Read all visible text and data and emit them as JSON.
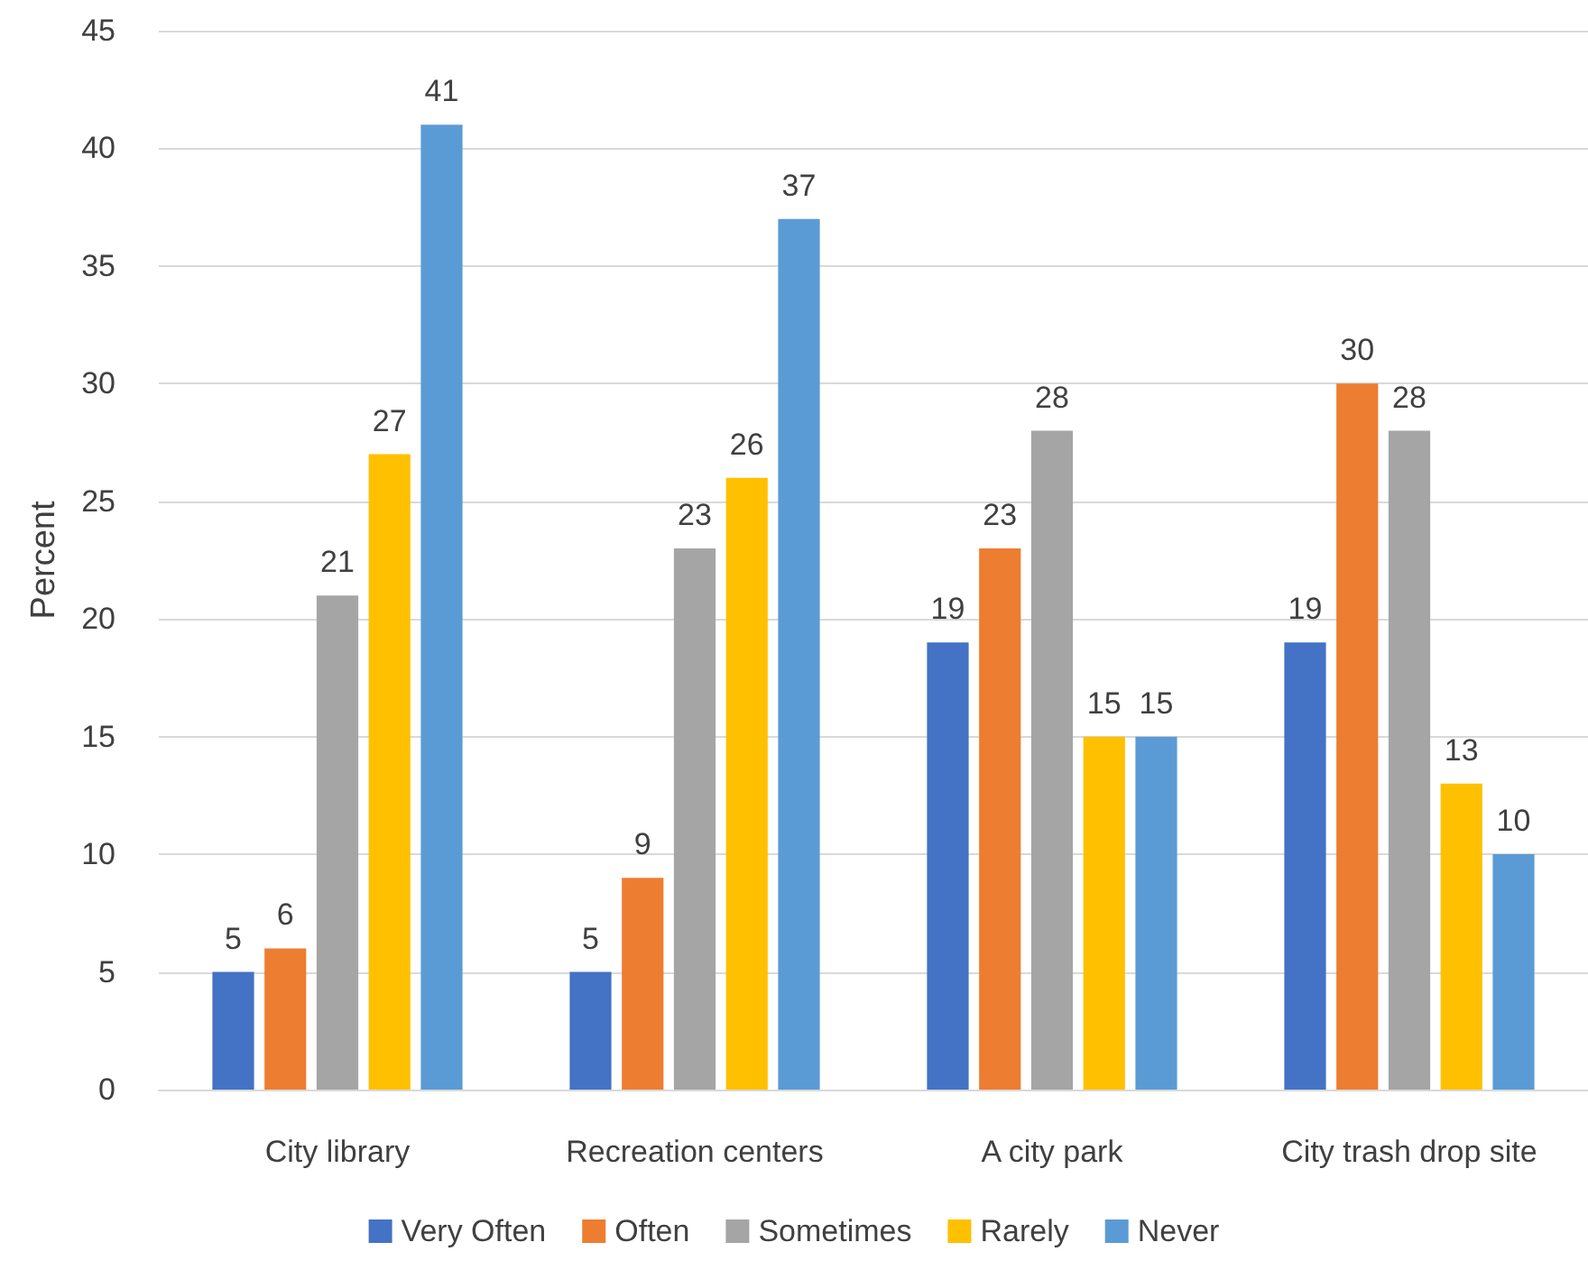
{
  "chart_data": {
    "type": "bar",
    "ylabel": "Percent",
    "categories": [
      "City library",
      "Recreation centers",
      "A city park",
      "City trash drop site"
    ],
    "series": [
      {
        "name": "Very Often",
        "color": "#4472c4",
        "values": [
          5,
          5,
          19,
          19
        ]
      },
      {
        "name": "Often",
        "color": "#ed7d31",
        "values": [
          6,
          9,
          23,
          30
        ]
      },
      {
        "name": "Sometimes",
        "color": "#a5a5a5",
        "values": [
          21,
          23,
          28,
          28
        ]
      },
      {
        "name": "Rarely",
        "color": "#ffc000",
        "values": [
          27,
          26,
          15,
          13
        ]
      },
      {
        "name": "Never",
        "color": "#5b9bd5",
        "values": [
          41,
          37,
          15,
          10
        ]
      }
    ],
    "ylim": [
      0,
      45
    ],
    "yticks": [
      0,
      5,
      10,
      15,
      20,
      25,
      30,
      35,
      40,
      45
    ],
    "grid": "y",
    "legend": "bottom",
    "data_labels": true
  }
}
